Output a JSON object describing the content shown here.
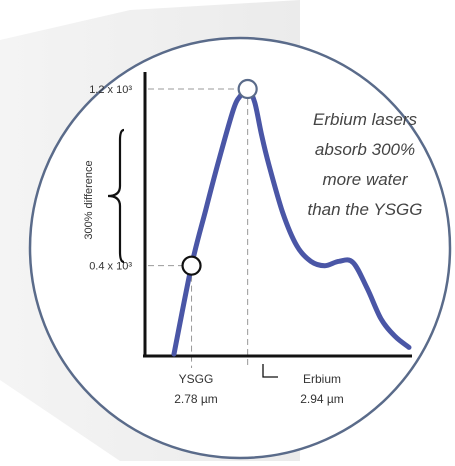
{
  "chart_data": {
    "type": "line",
    "xlabel": "",
    "ylabel": "",
    "y_ticks": [
      {
        "label": "1.2 x 10³",
        "value": 1200
      },
      {
        "label": "0.4 x 10³",
        "value": 400
      }
    ],
    "markers": [
      {
        "name": "YSGG",
        "wavelength": "2.78 µm",
        "x": 2.78,
        "y": 400
      },
      {
        "name": "Erbium",
        "wavelength": "2.94 µm",
        "x": 2.94,
        "y": 1200
      }
    ],
    "bracket_label": "300% difference",
    "annotation_lines": [
      "Erbium lasers",
      "absorb 300%",
      "more water",
      "than the YSGG"
    ],
    "series": [
      {
        "x": [
          2.73,
          2.78,
          2.82,
          2.86,
          2.9,
          2.92,
          2.94,
          2.96,
          2.98,
          3.0,
          3.04,
          3.08,
          3.12,
          3.16,
          3.2,
          3.24,
          3.28,
          3.32,
          3.36,
          3.4
        ],
        "values": [
          0,
          400,
          650,
          890,
          1110,
          1170,
          1200,
          1140,
          990,
          860,
          640,
          490,
          420,
          400,
          420,
          415,
          300,
          160,
          80,
          30
        ]
      }
    ],
    "colors": {
      "line": "#4a56a6",
      "circle": "#5a6b8a",
      "axis": "#111111",
      "guide": "#999999"
    }
  }
}
